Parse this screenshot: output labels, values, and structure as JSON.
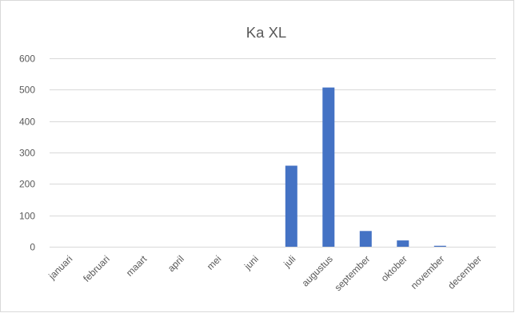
{
  "chart_data": {
    "type": "bar",
    "title": "Ka XL",
    "xlabel": "",
    "ylabel": "",
    "categories": [
      "januari",
      "februari",
      "maart",
      "april",
      "mei",
      "juni",
      "juli",
      "augustus",
      "september",
      "oktober",
      "november",
      "december"
    ],
    "values": [
      0,
      0,
      0,
      0,
      0,
      0,
      258,
      507,
      50,
      20,
      3,
      0
    ],
    "ylim": [
      0,
      600
    ],
    "yticks": [
      0,
      100,
      200,
      300,
      400,
      500,
      600
    ],
    "grid": true,
    "legend": "none",
    "colors": {
      "bar": "#4472c4",
      "grid": "#d9d9d9",
      "text": "#595959",
      "frame": "#d9d9d9"
    }
  }
}
